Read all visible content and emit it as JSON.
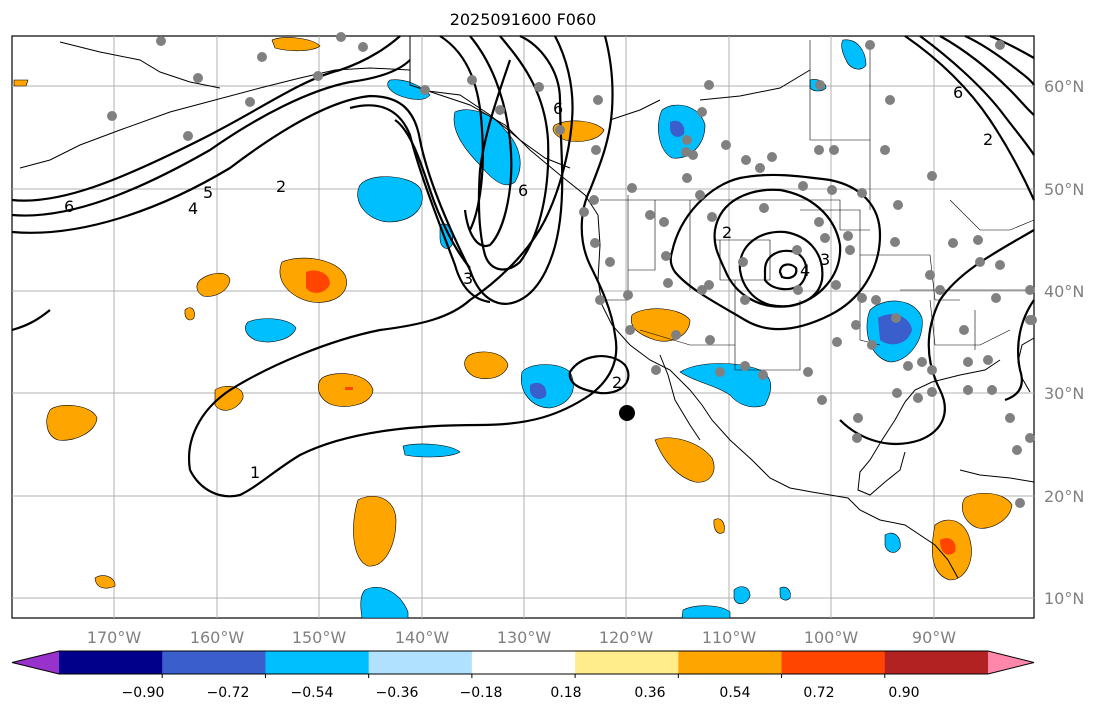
{
  "title": "2025091600 F060",
  "lon_ticks": [
    "170°W",
    "160°W",
    "150°W",
    "140°W",
    "130°W",
    "120°W",
    "110°W",
    "100°W",
    "90°W"
  ],
  "lat_ticks": [
    "60°N",
    "50°N",
    "40°N",
    "30°N",
    "20°N",
    "10°N"
  ],
  "colorbar": {
    "tick_labels": [
      "−0.90",
      "−0.72",
      "−0.54",
      "−0.36",
      "−0.18",
      "0.18",
      "0.36",
      "0.54",
      "0.72",
      "0.90"
    ],
    "colors": [
      "#9932cc",
      "#00008b",
      "#3a5fcd",
      "#00bfff",
      "#b0e2ff",
      "#ffffff",
      "#ffec8b",
      "#ffa500",
      "#ff4500",
      "#b22222",
      "#ff88aa"
    ]
  },
  "contour_labels": [
    "6",
    "5",
    "4",
    "2",
    "6",
    "3",
    "6",
    "2",
    "2",
    "4",
    "3",
    "1",
    "2",
    "6"
  ],
  "colors": {
    "negative_fill": "#00bfff",
    "strong_negative_fill": "#3a5fcd",
    "positive_fill": "#ffa500",
    "strong_positive_fill": "#ff4500",
    "station_marker": "#808080",
    "storm_marker": "#000000"
  }
}
